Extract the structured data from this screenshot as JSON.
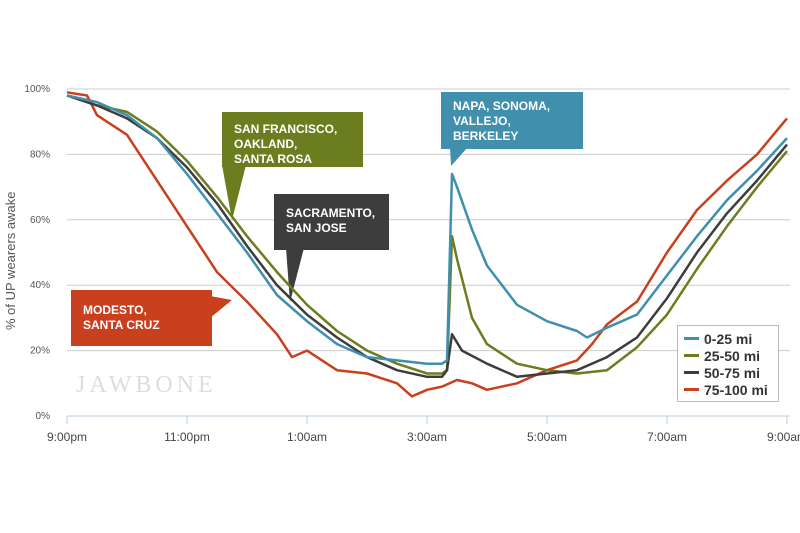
{
  "chart_data": {
    "type": "line",
    "ylabel": "% of UP wearers awake",
    "ylim": [
      0,
      100
    ],
    "yticks": [
      "0%",
      "20%",
      "40%",
      "60%",
      "80%",
      "100%"
    ],
    "xticks": [
      "9:00pm",
      "11:00pm",
      "1:00am",
      "3:00am",
      "5:00am",
      "7:00am",
      "9:00am"
    ],
    "xrange": [
      "21:00",
      "09:00"
    ],
    "grid": true,
    "legend_position": "bottom-right",
    "series": [
      {
        "name": "0-25 mi",
        "color": "#3f8fad",
        "x": [
          "21:00",
          "21:30",
          "22:00",
          "22:30",
          "23:00",
          "23:30",
          "00:00",
          "00:30",
          "01:00",
          "01:30",
          "02:00",
          "02:30",
          "03:00",
          "03:15",
          "03:20",
          "03:25",
          "03:30",
          "03:45",
          "04:00",
          "04:30",
          "05:00",
          "05:30",
          "05:40",
          "06:00",
          "06:30",
          "07:00",
          "07:30",
          "08:00",
          "08:30",
          "09:00"
        ],
        "y": [
          98,
          96,
          92,
          85,
          74,
          62,
          50,
          37,
          29,
          22,
          18,
          17,
          16,
          16,
          17,
          74,
          70,
          57,
          46,
          34,
          29,
          26,
          24,
          27,
          31,
          43,
          55,
          66,
          75,
          85
        ]
      },
      {
        "name": "25-50 mi",
        "color": "#6b7d1f",
        "x": [
          "21:00",
          "21:30",
          "22:00",
          "22:30",
          "23:00",
          "23:30",
          "00:00",
          "00:30",
          "01:00",
          "01:30",
          "02:00",
          "02:30",
          "03:00",
          "03:15",
          "03:20",
          "03:25",
          "03:30",
          "03:45",
          "04:00",
          "04:30",
          "05:00",
          "05:30",
          "06:00",
          "06:30",
          "07:00",
          "07:30",
          "08:00",
          "08:30",
          "09:00"
        ],
        "y": [
          98,
          95,
          93,
          87,
          78,
          67,
          55,
          44,
          34,
          26,
          20,
          16,
          13,
          13,
          14,
          55,
          48,
          30,
          22,
          16,
          14,
          13,
          14,
          21,
          31,
          45,
          58,
          70,
          81
        ]
      },
      {
        "name": "50-75 mi",
        "color": "#3d3d3d",
        "x": [
          "21:00",
          "21:30",
          "22:00",
          "22:30",
          "23:00",
          "23:30",
          "00:00",
          "00:30",
          "01:00",
          "01:30",
          "02:00",
          "02:30",
          "03:00",
          "03:15",
          "03:20",
          "03:25",
          "03:35",
          "04:00",
          "04:30",
          "05:00",
          "05:30",
          "06:00",
          "06:30",
          "07:00",
          "07:30",
          "08:00",
          "08:30",
          "09:00"
        ],
        "y": [
          98,
          95,
          91,
          85,
          76,
          65,
          52,
          40,
          31,
          24,
          18,
          14,
          12,
          12,
          14,
          25,
          20,
          16,
          12,
          13,
          14,
          18,
          24,
          36,
          50,
          62,
          72,
          83
        ]
      },
      {
        "name": "75-100 mi",
        "color": "#c9401f",
        "x": [
          "21:00",
          "21:20",
          "21:30",
          "22:00",
          "22:30",
          "23:00",
          "23:30",
          "00:00",
          "00:30",
          "00:45",
          "01:00",
          "01:30",
          "02:00",
          "02:30",
          "02:45",
          "03:00",
          "03:15",
          "03:30",
          "03:45",
          "04:00",
          "04:30",
          "05:00",
          "05:30",
          "05:45",
          "06:00",
          "06:30",
          "07:00",
          "07:30",
          "08:00",
          "08:30",
          "09:00"
        ],
        "y": [
          99,
          98,
          92,
          86,
          72,
          58,
          44,
          35,
          25,
          18,
          20,
          14,
          13,
          10,
          6,
          8,
          9,
          11,
          10,
          8,
          10,
          14,
          17,
          22,
          28,
          35,
          50,
          63,
          72,
          80,
          91
        ]
      }
    ],
    "annotations": [
      {
        "lines": [
          "SAN FRANCISCO,",
          "OAKLAND,",
          "SANTA ROSA"
        ],
        "color": "#6b7d1f"
      },
      {
        "lines": [
          "SACRAMENTO,",
          "SAN JOSE"
        ],
        "color": "#3d3d3d"
      },
      {
        "lines": [
          "MODESTO,",
          "SANTA CRUZ"
        ],
        "color": "#c9401f"
      },
      {
        "lines": [
          "NAPA, SONOMA,",
          "VALLEJO,",
          "BERKELEY"
        ],
        "color": "#3f8fad"
      }
    ]
  },
  "watermark": "JAWBONE"
}
